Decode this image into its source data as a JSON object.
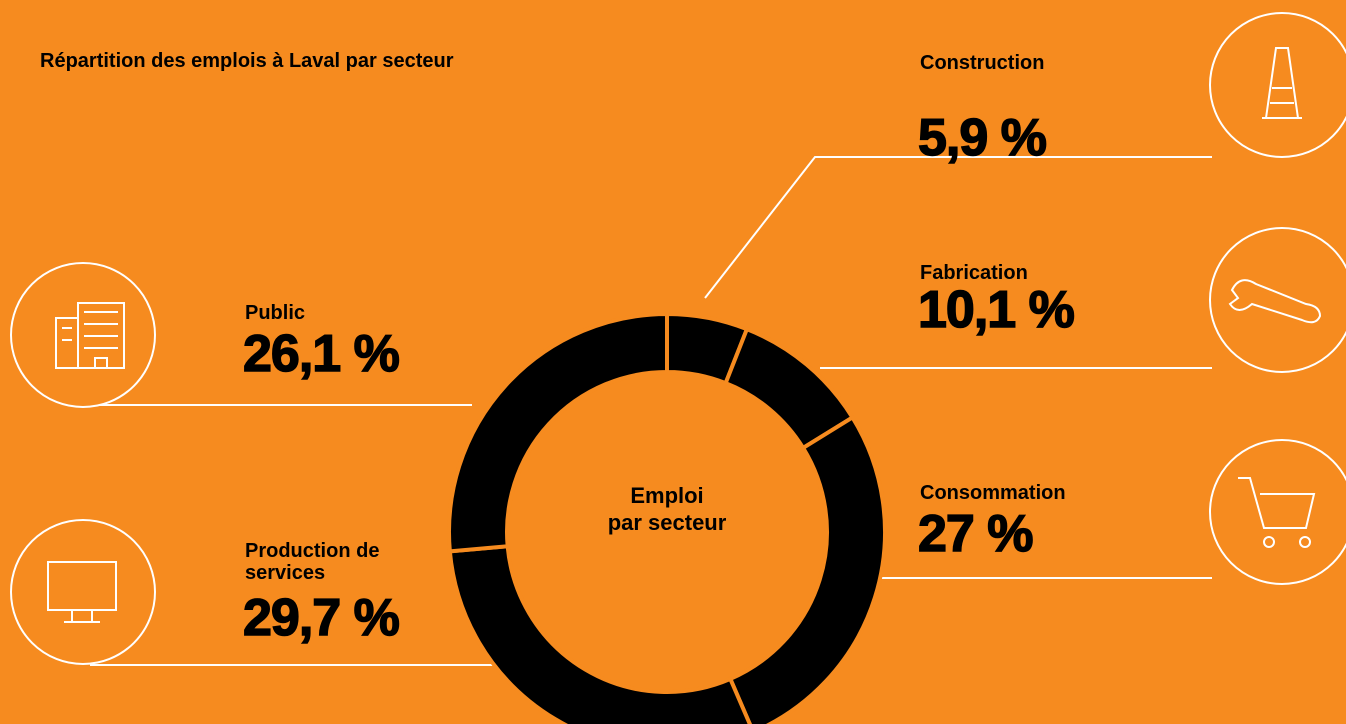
{
  "chart_data": {
    "type": "donut",
    "title": "Répartition des emplois à Laval par secteur",
    "center_label": [
      "Emploi",
      "par secteur"
    ],
    "categories": [
      "Construction",
      "Fabrication",
      "Consommation",
      "Production de services",
      "Public"
    ],
    "values": [
      5.9,
      10.1,
      27,
      29.7,
      26.1
    ],
    "value_labels": [
      "5,9 %",
      "10,1 %",
      "27 %",
      "29,7 %",
      "26,1 %"
    ],
    "color": "#000000",
    "background": "#f68b1f"
  }
}
